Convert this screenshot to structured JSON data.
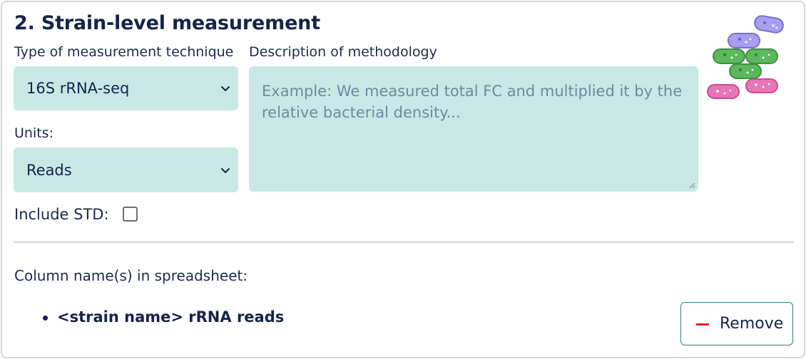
{
  "section": {
    "title": "2. Strain-level measurement"
  },
  "technique": {
    "label": "Type of measurement technique",
    "selected": "16S rRNA-seq"
  },
  "methodology": {
    "label": "Description of methodology",
    "placeholder": "Example: We measured total FC and multiplied it by the relative bacterial density..."
  },
  "units": {
    "label": "Units:",
    "selected": "Reads"
  },
  "std": {
    "label": "Include STD:",
    "checked": false
  },
  "columns": {
    "label": "Column name(s) in spreadsheet:",
    "items": [
      "<strain name> rRNA reads"
    ]
  },
  "remove_button": {
    "label": "Remove"
  },
  "icons": {
    "chevron": "chevron-down-icon",
    "minus": "minus-icon",
    "illustration": "bacteria-illustration"
  },
  "colors": {
    "field_bg": "#c8e8e6",
    "title": "#14234b",
    "remove_border": "#2f8081",
    "minus": "#e02020",
    "bacteria_purple": "#a99ff0",
    "bacteria_green": "#5cb85c",
    "bacteria_pink": "#e876b5"
  }
}
